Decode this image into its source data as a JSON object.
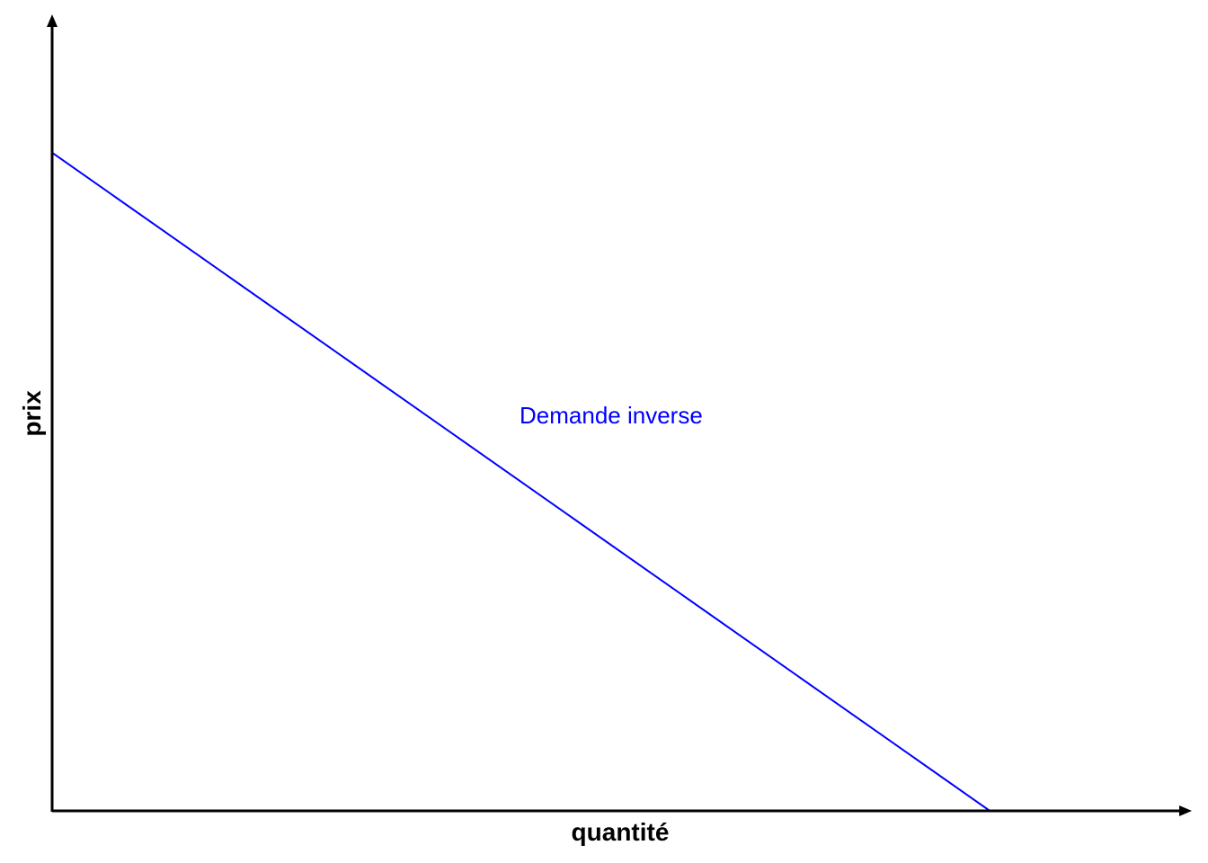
{
  "chart_data": {
    "type": "line",
    "title": "",
    "xlabel": "quantité",
    "ylabel": "prix",
    "x": [
      0,
      100
    ],
    "series": [
      {
        "name": "Demande inverse",
        "color": "#0000ff",
        "values": [
          100,
          0
        ]
      }
    ],
    "xlim": [
      0,
      120
    ],
    "ylim": [
      0,
      118
    ],
    "grid": false,
    "ticks": false,
    "axis_arrows": true
  }
}
